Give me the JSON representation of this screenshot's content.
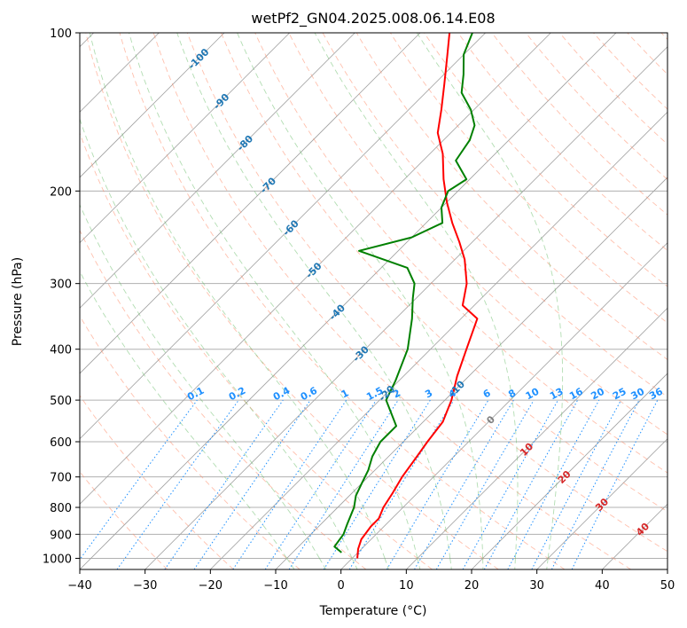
{
  "chart_data": {
    "type": "line",
    "title": "wetPf2_GN04.2025.008.06.14.E08",
    "xlabel": "Temperature (°C)",
    "ylabel": "Pressure (hPa)",
    "xlim": [
      -40,
      50
    ],
    "ylim": [
      1050,
      100
    ],
    "y_scale": "log",
    "skew": true,
    "grid": true,
    "x_ticks": [
      "−40",
      "−30",
      "−20",
      "−10",
      "0",
      "10",
      "20",
      "30",
      "40",
      "50"
    ],
    "y_ticks": [
      "100",
      "200",
      "300",
      "400",
      "500",
      "600",
      "700",
      "800",
      "900",
      "1000"
    ],
    "series": [
      {
        "color": "#ff0000",
        "points": [
          [
            0.8,
            1000
          ],
          [
            -0.5,
            960
          ],
          [
            -1.5,
            920
          ],
          [
            -2.0,
            870
          ],
          [
            -2.0,
            840
          ],
          [
            -2.5,
            820
          ],
          [
            -3.0,
            800
          ],
          [
            -3.8,
            750
          ],
          [
            -4.8,
            700
          ],
          [
            -5.5,
            650
          ],
          [
            -6.3,
            600
          ],
          [
            -7.0,
            550
          ],
          [
            -9.0,
            500
          ],
          [
            -11.8,
            450
          ],
          [
            -14.5,
            400
          ],
          [
            -17.5,
            350
          ],
          [
            -21.8,
            330
          ],
          [
            -24.5,
            300
          ],
          [
            -28.5,
            270
          ],
          [
            -32.0,
            250
          ],
          [
            -36.0,
            230
          ],
          [
            -40.0,
            210
          ],
          [
            -44.0,
            190
          ],
          [
            -48.0,
            170
          ],
          [
            -52.0,
            155
          ],
          [
            -55.0,
            140
          ],
          [
            -58.5,
            125
          ],
          [
            -62.5,
            110
          ],
          [
            -65.5,
            100
          ]
        ]
      },
      {
        "color": "#008000",
        "points": [
          [
            -2.5,
            975
          ],
          [
            -4.5,
            950
          ],
          [
            -5.0,
            900
          ],
          [
            -6.0,
            860
          ],
          [
            -7.5,
            800
          ],
          [
            -9.0,
            760
          ],
          [
            -10.0,
            720
          ],
          [
            -11.0,
            680
          ],
          [
            -12.5,
            640
          ],
          [
            -13.5,
            600
          ],
          [
            -13.5,
            560
          ],
          [
            -19.0,
            500
          ],
          [
            -20.5,
            460
          ],
          [
            -23.5,
            400
          ],
          [
            -27.5,
            350
          ],
          [
            -30.5,
            320
          ],
          [
            -32.5,
            300
          ],
          [
            -36.0,
            280
          ],
          [
            -46.0,
            260
          ],
          [
            -40.0,
            245
          ],
          [
            -37.5,
            230
          ],
          [
            -40.0,
            215
          ],
          [
            -41.5,
            200
          ],
          [
            -40.5,
            190
          ],
          [
            -45.0,
            175
          ],
          [
            -46.0,
            160
          ],
          [
            -47.5,
            150
          ],
          [
            -50.5,
            140
          ],
          [
            -54.5,
            130
          ],
          [
            -57.0,
            120
          ],
          [
            -60.0,
            110
          ],
          [
            -62.0,
            100
          ]
        ]
      }
    ],
    "isotherm_labels": [
      {
        "value": -100,
        "text": "-100"
      },
      {
        "value": -90,
        "text": "-90"
      },
      {
        "value": -80,
        "text": "-80"
      },
      {
        "value": -70,
        "text": "-70"
      },
      {
        "value": -60,
        "text": "-60"
      },
      {
        "value": -50,
        "text": "-50"
      },
      {
        "value": -40,
        "text": "-40"
      },
      {
        "value": -30,
        "text": "-30"
      },
      {
        "value": -20,
        "text": "-20"
      },
      {
        "value": -10,
        "text": "-10"
      },
      {
        "value": 0,
        "text": "0"
      },
      {
        "value": 10,
        "text": "10"
      },
      {
        "value": 20,
        "text": "20"
      },
      {
        "value": 30,
        "text": "30"
      },
      {
        "value": 40,
        "text": "40"
      }
    ],
    "mixing_ratio_labels": [
      {
        "value": 0.1,
        "text": "0.1"
      },
      {
        "value": 0.2,
        "text": "0.2"
      },
      {
        "value": 0.4,
        "text": "0.4"
      },
      {
        "value": 0.6,
        "text": "0.6"
      },
      {
        "value": 1,
        "text": "1"
      },
      {
        "value": 1.5,
        "text": "1.5"
      },
      {
        "value": 2,
        "text": "2"
      },
      {
        "value": 3,
        "text": "3"
      },
      {
        "value": 4,
        "text": "4"
      },
      {
        "value": 6,
        "text": "6"
      },
      {
        "value": 8,
        "text": "8"
      },
      {
        "value": 10,
        "text": "10"
      },
      {
        "value": 13,
        "text": "13"
      },
      {
        "value": 16,
        "text": "16"
      },
      {
        "value": 20,
        "text": "20"
      },
      {
        "value": 25,
        "text": "25"
      },
      {
        "value": 30,
        "text": "30"
      },
      {
        "value": 36,
        "text": "36"
      }
    ],
    "colors": {
      "isotherm": "#a0a0a0",
      "dry_adiabat": "#ff8c69",
      "moist_adiabat": "#66bb66",
      "mixing_ratio": "#1e90ff",
      "isotherm_label_cold": "#1f77b4",
      "isotherm_label_zero": "#808080",
      "isotherm_label_warm": "#d62728",
      "mixing_label": "#1e90ff"
    }
  }
}
